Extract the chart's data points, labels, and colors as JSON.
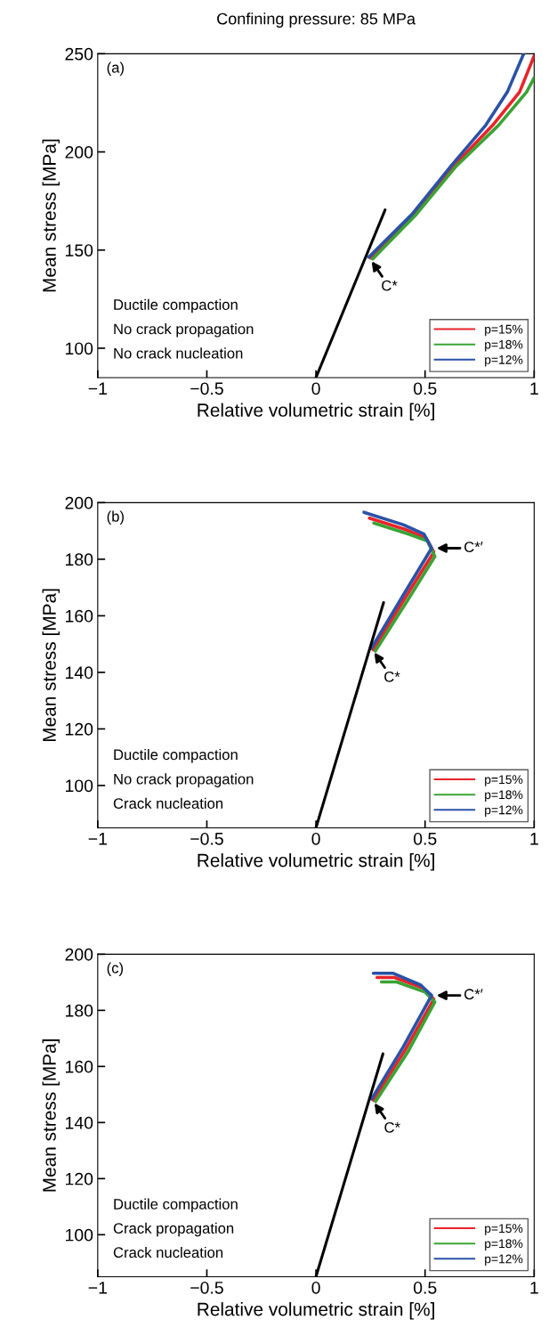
{
  "chart_data": [
    {
      "type": "line",
      "title": "Confining pressure: 85 MPa",
      "xlabel": "Relative volumetric strain [%]",
      "ylabel": "Mean stress [MPa]",
      "xlim": [
        -1,
        1
      ],
      "xticks": [
        -1,
        -0.5,
        0,
        0.5,
        1
      ],
      "ylim": [
        85,
        250
      ],
      "yticks": [
        100,
        150,
        200,
        250
      ],
      "grid": false,
      "legend": "bottom right",
      "line_style": "solid",
      "marker": "none",
      "series": [
        {
          "name": "p=15%",
          "color": "#e8242a",
          "x": [
            0.25,
            0.45,
            0.627,
            0.81,
            0.933,
            1.0
          ],
          "values": [
            146,
            168.2,
            192.3,
            213.6,
            230.5,
            249
          ]
        },
        {
          "name": "p=18%",
          "color": "#3aa335",
          "x": [
            0.26,
            0.46,
            0.639,
            0.837,
            0.965,
            1.0
          ],
          "values": [
            145.5,
            168.2,
            192.3,
            213.6,
            230.5,
            237.7
          ]
        },
        {
          "name": "p=12%",
          "color": "#2a52a6",
          "x": [
            0.242,
            0.44,
            0.615,
            0.778,
            0.877,
            0.952
          ],
          "values": [
            146.4,
            168.2,
            192.3,
            213.6,
            230.5,
            250
          ]
        },
        {
          "color": "#000000",
          "x": [
            0,
            0.317
          ],
          "values": [
            85,
            170.5
          ]
        }
      ],
      "annotations": [
        "(a)",
        "Ductile compaction",
        "No crack propagation",
        "No crack nucleation",
        {
          "text": "C*",
          "x": 0.242,
          "y": 146.4
        }
      ]
    },
    {
      "type": "line",
      "xlabel": "Relative volumetric strain [%]",
      "ylabel": "Mean stress [MPa]",
      "xlim": [
        -1,
        1
      ],
      "xticks": [
        -1,
        -0.5,
        0,
        0.5,
        1
      ],
      "ylim": [
        85,
        200
      ],
      "yticks": [
        100,
        120,
        140,
        160,
        180,
        200
      ],
      "grid": false,
      "legend": "bottom right",
      "line_style": "solid",
      "marker": "none",
      "series": [
        {
          "name": "p=15%",
          "color": "#e8242a",
          "x": [
            0.262,
            0.41,
            0.54,
            0.505,
            0.41,
            0.245
          ],
          "values": [
            148,
            166.5,
            182.5,
            187.5,
            190.5,
            194.5
          ]
        },
        {
          "name": "p=18%",
          "color": "#3aa335",
          "x": [
            0.272,
            0.42,
            0.545,
            0.51,
            0.42,
            0.265
          ],
          "values": [
            147.5,
            165.5,
            181,
            186.5,
            189,
            192.8
          ]
        },
        {
          "name": "p=12%",
          "color": "#2a52a6",
          "x": [
            0.254,
            0.4,
            0.53,
            0.495,
            0.4,
            0.22
          ],
          "values": [
            148.5,
            167.3,
            183.9,
            188.9,
            192.2,
            196.6
          ]
        },
        {
          "color": "#000000",
          "x": [
            0,
            0.31
          ],
          "values": [
            85,
            164.7
          ]
        }
      ],
      "annotations": [
        "(b)",
        "Ductile compaction",
        "No crack propagation",
        "Crack nucleation",
        {
          "text": "C*",
          "x": 0.254,
          "y": 148.5
        },
        {
          "text": "C*′",
          "x": 0.53,
          "y": 183.9
        }
      ]
    },
    {
      "type": "line",
      "xlabel": "Relative volumetric strain [%]",
      "ylabel": "Mean stress [MPa]",
      "xlim": [
        -1,
        1
      ],
      "xticks": [
        -1,
        -0.5,
        0,
        0.5,
        1
      ],
      "ylim": [
        85,
        200
      ],
      "yticks": [
        100,
        120,
        140,
        160,
        180,
        200
      ],
      "grid": false,
      "legend": "bottom right",
      "line_style": "solid",
      "marker": "none",
      "series": [
        {
          "name": "p=15%",
          "color": "#e8242a",
          "x": [
            0.263,
            0.41,
            0.54,
            0.49,
            0.36,
            0.28
          ],
          "values": [
            148,
            166,
            184,
            188,
            191.7,
            191.7
          ]
        },
        {
          "name": "p=18%",
          "color": "#3aa335",
          "x": [
            0.273,
            0.42,
            0.545,
            0.5,
            0.37,
            0.3
          ],
          "values": [
            147.5,
            165,
            183,
            186.5,
            190.1,
            190.1
          ]
        },
        {
          "name": "p=12%",
          "color": "#2a52a6",
          "x": [
            0.255,
            0.4,
            0.53,
            0.48,
            0.355,
            0.263
          ],
          "values": [
            148.4,
            167,
            185.3,
            189,
            193.2,
            193.2
          ]
        },
        {
          "color": "#000000",
          "x": [
            0,
            0.307
          ],
          "values": [
            85,
            164.5
          ]
        }
      ],
      "annotations": [
        "(c)",
        "Ductile compaction",
        "Crack propagation",
        "Crack nucleation",
        {
          "text": "C*",
          "x": 0.255,
          "y": 148.4
        },
        {
          "text": "C*′",
          "x": 0.53,
          "y": 185.3
        }
      ]
    }
  ]
}
